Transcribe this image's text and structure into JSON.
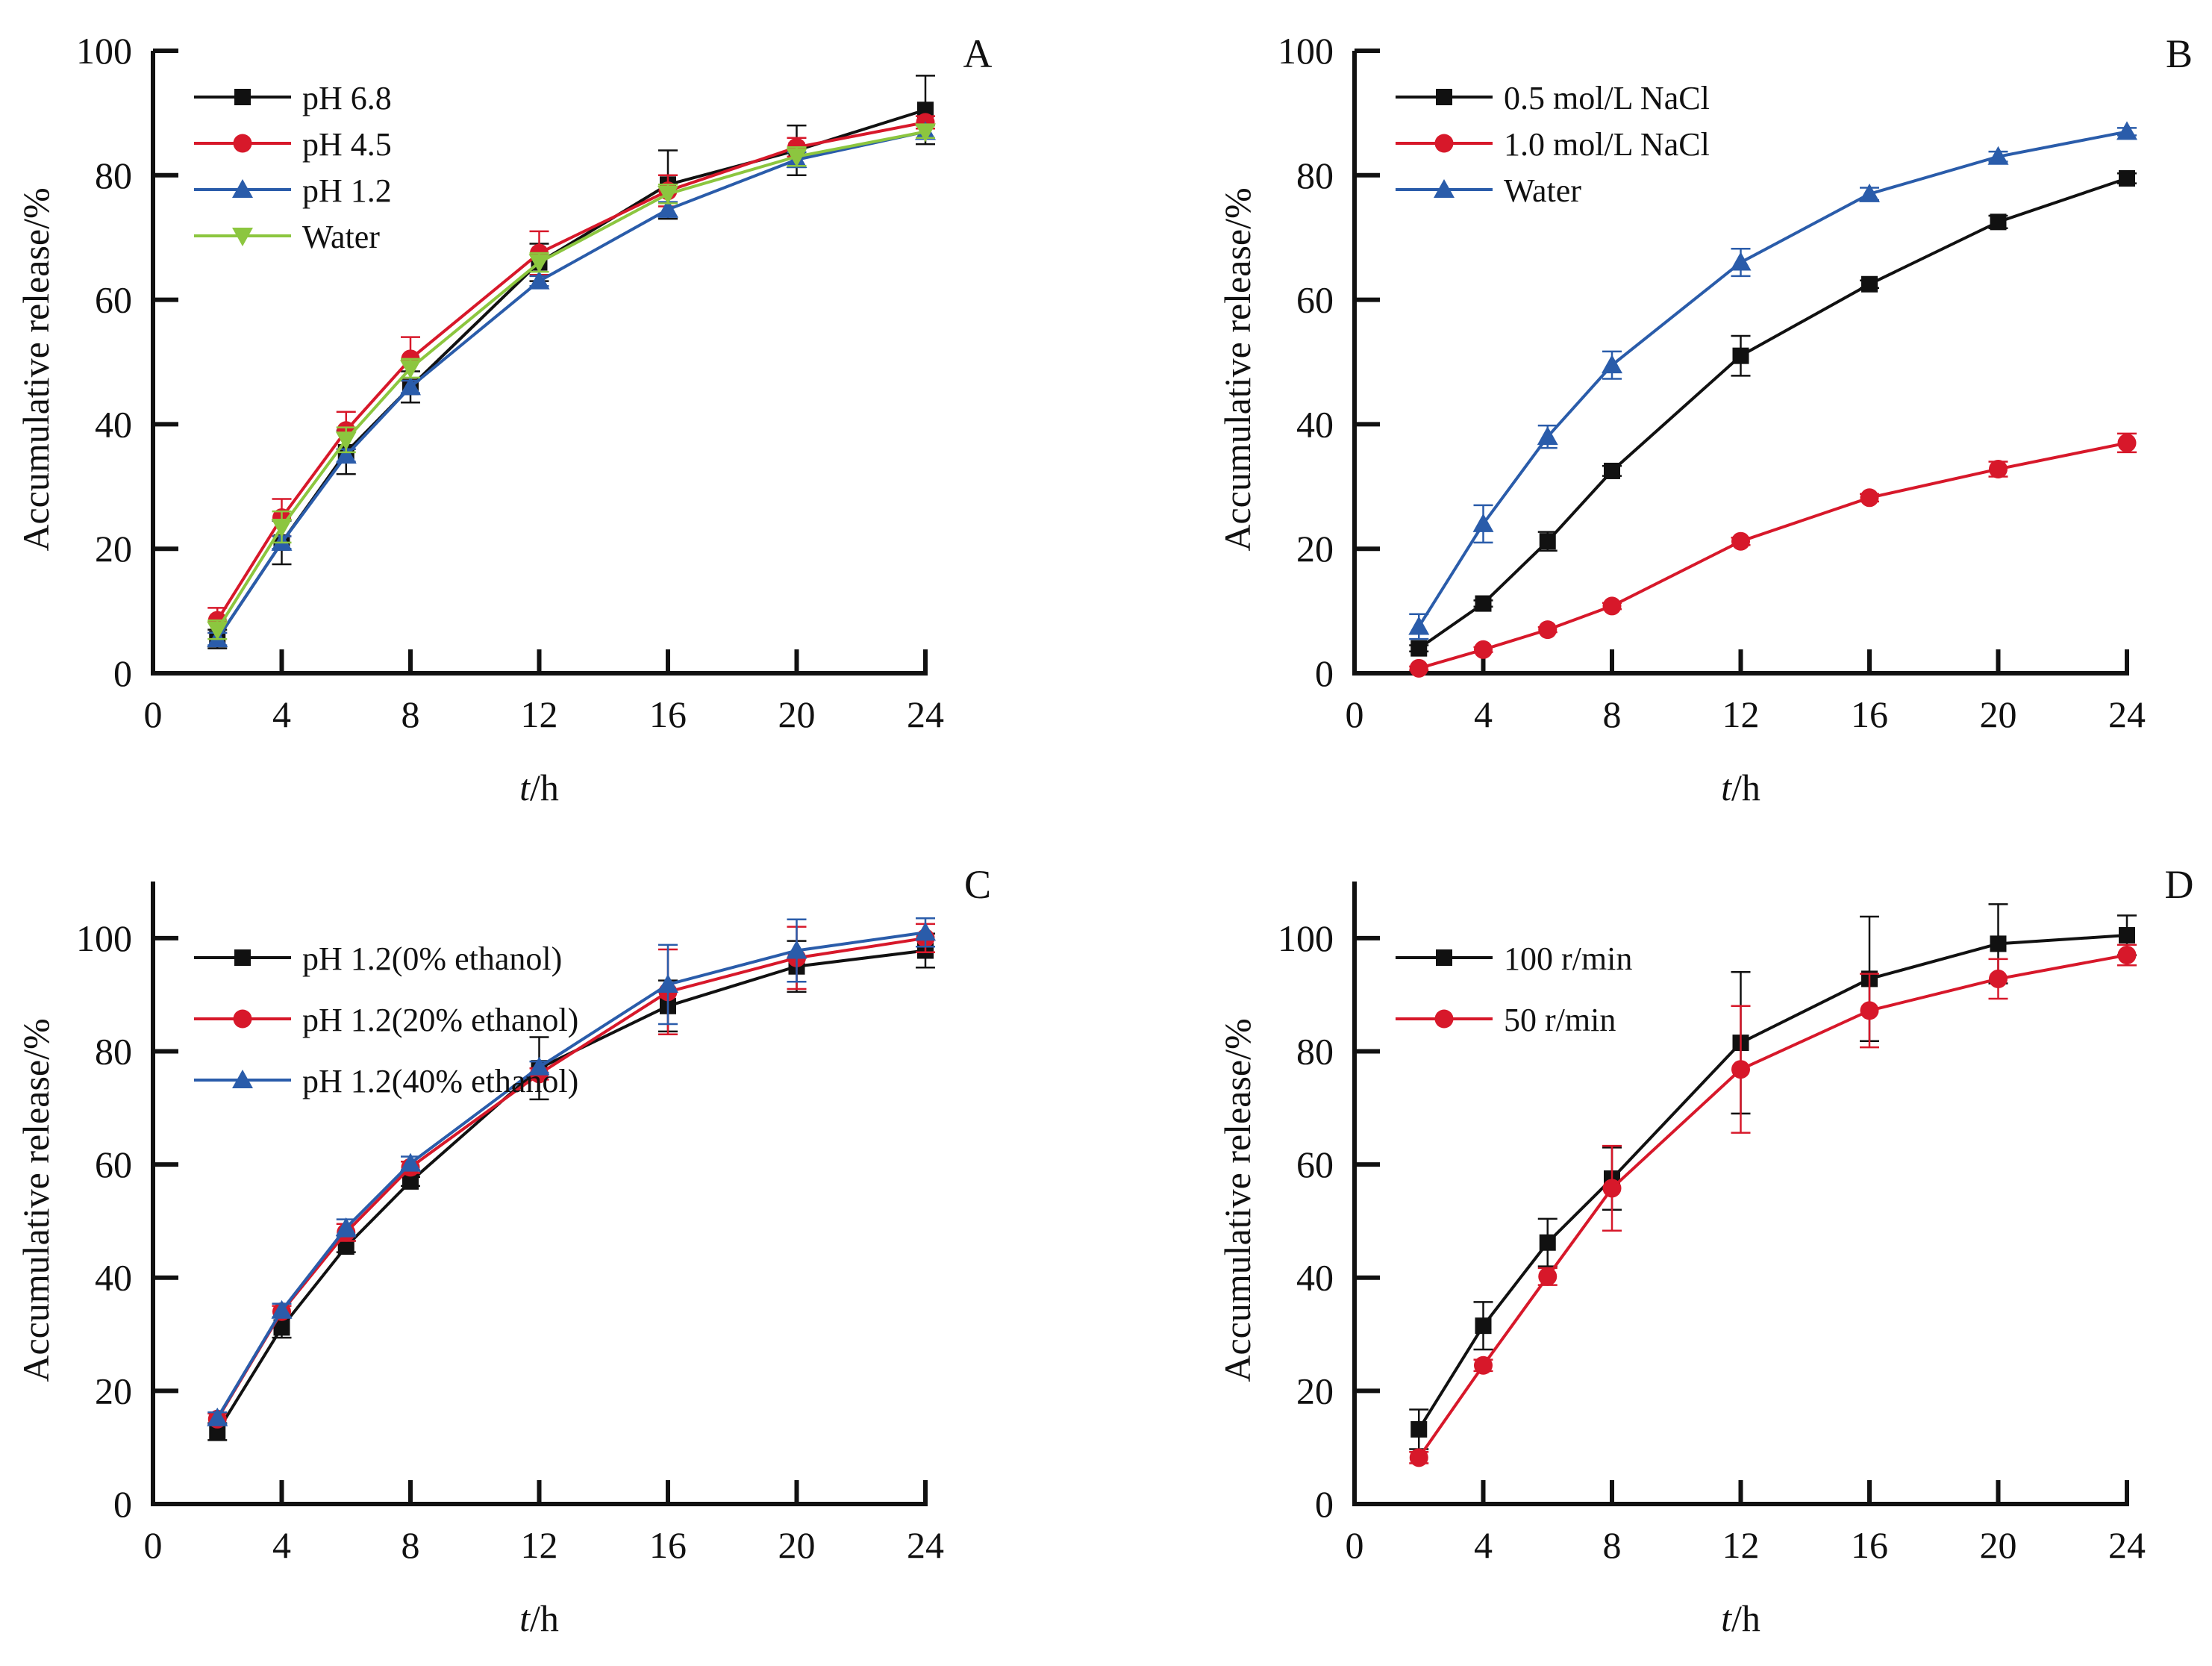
{
  "chart_data": [
    {
      "panel": "A",
      "type": "line",
      "title": "",
      "xlabel_italic": "t",
      "xlabel_rest": "/h",
      "ylabel": "Accumulative release/%",
      "xlim": [
        0,
        24
      ],
      "ylim": [
        0,
        100
      ],
      "xticks": [
        0,
        4,
        8,
        12,
        16,
        20,
        24
      ],
      "yticks": [
        0,
        20,
        40,
        60,
        80,
        100
      ],
      "grid": false,
      "legend_position": "top-left",
      "x": [
        2,
        4,
        6,
        8,
        12,
        16,
        20,
        24
      ],
      "series": [
        {
          "name": "pH 6.8",
          "color": "#111111",
          "marker": "square",
          "values": [
            5.5,
            21.0,
            35.5,
            46.0,
            66.0,
            78.5,
            84.0,
            90.5
          ],
          "errors": [
            1.5,
            3.5,
            3.5,
            2.5,
            3.0,
            5.5,
            4.0,
            5.5
          ]
        },
        {
          "name": "pH 4.5",
          "color": "#d7182a",
          "marker": "circle",
          "values": [
            8.5,
            25.0,
            39.0,
            50.5,
            67.5,
            77.5,
            84.5,
            88.5
          ],
          "errors": [
            2.0,
            3.0,
            3.0,
            3.5,
            3.5,
            2.5,
            1.5,
            1.0
          ]
        },
        {
          "name": "pH 1.2",
          "color": "#2a5caa",
          "marker": "triangle-up",
          "values": [
            5.5,
            21.0,
            35.0,
            46.0,
            63.0,
            74.5,
            82.5,
            87.0
          ],
          "errors": [
            1.0,
            1.0,
            1.0,
            1.0,
            0.8,
            1.2,
            1.2,
            1.0
          ]
        },
        {
          "name": "Water",
          "color": "#8cc63f",
          "marker": "triangle-down",
          "values": [
            7.0,
            23.5,
            37.5,
            49.0,
            66.0,
            77.0,
            83.0,
            87.0
          ],
          "errors": [
            1.5,
            2.5,
            2.0,
            1.5,
            1.5,
            1.5,
            1.5,
            1.0
          ]
        }
      ]
    },
    {
      "panel": "B",
      "type": "line",
      "title": "",
      "xlabel_italic": "t",
      "xlabel_rest": "/h",
      "ylabel": "Accumulative release/%",
      "xlim": [
        0,
        24
      ],
      "ylim": [
        0,
        100
      ],
      "xticks": [
        0,
        4,
        8,
        12,
        16,
        20,
        24
      ],
      "yticks": [
        0,
        20,
        40,
        60,
        80,
        100
      ],
      "grid": false,
      "legend_position": "top-left",
      "x": [
        2,
        4,
        6,
        8,
        12,
        16,
        20,
        24
      ],
      "series": [
        {
          "name": "0.5 mol/L NaCl",
          "color": "#111111",
          "marker": "square",
          "values": [
            4.0,
            11.2,
            21.2,
            32.5,
            51.0,
            62.5,
            72.5,
            79.5
          ],
          "errors": [
            0.5,
            0.5,
            1.5,
            0.8,
            3.2,
            0.6,
            1.0,
            0.8
          ]
        },
        {
          "name": "1.0 mol/L NaCl",
          "color": "#d7182a",
          "marker": "circle",
          "values": [
            0.8,
            3.8,
            7.0,
            10.8,
            21.2,
            28.2,
            32.8,
            37.0
          ],
          "errors": [
            0.3,
            0.4,
            0.4,
            0.5,
            0.6,
            0.6,
            1.2,
            1.5
          ]
        },
        {
          "name": "Water",
          "color": "#2a5caa",
          "marker": "triangle-up",
          "values": [
            7.5,
            24.0,
            38.0,
            49.5,
            66.0,
            77.0,
            83.0,
            87.0
          ],
          "errors": [
            2.0,
            3.0,
            1.8,
            2.2,
            2.2,
            1.0,
            0.8,
            0.6
          ]
        }
      ]
    },
    {
      "panel": "C",
      "type": "line",
      "title": "",
      "xlabel_italic": "t",
      "xlabel_rest": "/h",
      "ylabel": "Accumulative release/%",
      "xlim": [
        0,
        24
      ],
      "ylim": [
        0,
        110
      ],
      "xticks": [
        0,
        4,
        8,
        12,
        16,
        20,
        24
      ],
      "yticks": [
        0,
        20,
        40,
        60,
        80,
        100
      ],
      "grid": false,
      "legend_position": "top-left",
      "x": [
        2,
        4,
        6,
        8,
        12,
        16,
        20,
        24
      ],
      "series": [
        {
          "name": "pH 1.2(0% ethanol)",
          "color": "#111111",
          "marker": "square",
          "values": [
            12.8,
            31.2,
            45.5,
            57.0,
            77.0,
            88.0,
            95.0,
            97.8
          ],
          "errors": [
            1.5,
            1.8,
            1.0,
            0.8,
            5.5,
            4.5,
            4.5,
            3.0
          ]
        },
        {
          "name": "pH 1.2(20% ethanol)",
          "color": "#d7182a",
          "marker": "circle",
          "values": [
            15.0,
            34.0,
            48.0,
            59.5,
            76.0,
            90.5,
            96.5,
            100.0
          ],
          "errors": [
            1.0,
            1.0,
            1.5,
            1.0,
            1.0,
            7.5,
            5.5,
            2.5
          ]
        },
        {
          "name": "pH 1.2(40% ethanol)",
          "color": "#2a5caa",
          "marker": "triangle-up",
          "values": [
            15.2,
            34.2,
            48.8,
            60.2,
            77.2,
            91.8,
            97.8,
            101.0
          ],
          "errors": [
            1.0,
            1.2,
            1.5,
            1.2,
            1.0,
            7.0,
            5.5,
            2.5
          ]
        }
      ]
    },
    {
      "panel": "D",
      "type": "line",
      "title": "",
      "xlabel_italic": "t",
      "xlabel_rest": "/h",
      "ylabel": "Accumulative release/%",
      "xlim": [
        0,
        24
      ],
      "ylim": [
        0,
        110
      ],
      "xticks": [
        0,
        4,
        8,
        12,
        16,
        20,
        24
      ],
      "yticks": [
        0,
        20,
        40,
        60,
        80,
        100
      ],
      "grid": false,
      "legend_position": "top-left",
      "x": [
        2,
        4,
        6,
        8,
        12,
        16,
        20,
        24
      ],
      "series": [
        {
          "name": "100 r/min",
          "color": "#111111",
          "marker": "square",
          "values": [
            13.2,
            31.5,
            46.2,
            57.5,
            81.5,
            92.8,
            99.0,
            100.5
          ],
          "errors": [
            3.5,
            4.2,
            4.2,
            5.5,
            12.5,
            11.0,
            7.0,
            3.5
          ]
        },
        {
          "name": "50 r/min",
          "color": "#d7182a",
          "marker": "circle",
          "values": [
            8.2,
            24.5,
            40.2,
            55.8,
            76.8,
            87.2,
            92.8,
            97.0
          ],
          "errors": [
            1.0,
            1.0,
            1.5,
            7.5,
            11.2,
            6.5,
            3.5,
            1.8
          ]
        }
      ]
    }
  ]
}
